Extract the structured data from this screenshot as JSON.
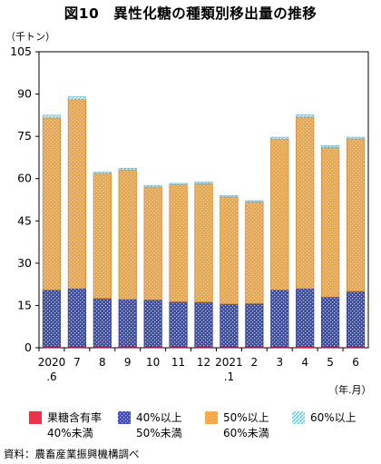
{
  "header": {
    "title": "図10　異性化糖の種類別移出量の推移",
    "unit_label": "（千トン）",
    "x_unit_label": "（年.月）",
    "source": "資料：農畜産業振興機構調べ"
  },
  "legend": [
    {
      "line1": "果糖含有率",
      "line2": "40%未満",
      "color": "#e8334a"
    },
    {
      "line1": "40%以上",
      "line2": "50%未満",
      "color": "#3b49b5"
    },
    {
      "line1": "50%以上",
      "line2": "60%未満",
      "color": "#f4a03a"
    },
    {
      "line1": "60%以上",
      "line2": "",
      "color": "#8fd6e6"
    }
  ],
  "chart_data": {
    "type": "bar",
    "stacked": true,
    "categories": [
      "2020\n.6",
      "7",
      "8",
      "9",
      "10",
      "11",
      "12",
      "2021\n.1",
      "2",
      "3",
      "4",
      "5",
      "6"
    ],
    "series": [
      {
        "name": "果糖含有率 40%未満",
        "color": "#e8334a",
        "values": [
          0.3,
          0.3,
          0.3,
          0.3,
          0.3,
          0.3,
          0.3,
          0.3,
          0.3,
          0.3,
          0.4,
          0.3,
          0.3
        ]
      },
      {
        "name": "40%以上 50%未満",
        "color": "#3b49b5",
        "values": [
          20.2,
          20.7,
          17.2,
          16.9,
          16.7,
          16.0,
          15.9,
          15.2,
          15.4,
          20.2,
          20.6,
          17.7,
          19.7
        ]
      },
      {
        "name": "50%以上 60%未満",
        "color": "#f4a03a",
        "values": [
          61.0,
          67.0,
          44.2,
          45.8,
          40.0,
          41.5,
          42.0,
          38.0,
          36.0,
          53.5,
          60.8,
          53.0,
          54.1
        ]
      },
      {
        "name": "60%以上",
        "color": "#8fd6e6",
        "values": [
          1.0,
          1.0,
          0.6,
          0.7,
          0.6,
          0.5,
          0.6,
          0.5,
          0.5,
          0.7,
          0.8,
          0.7,
          0.6
        ]
      }
    ],
    "ylim": [
      0,
      105
    ],
    "yticks": [
      0,
      15,
      30,
      45,
      60,
      75,
      90,
      105
    ],
    "grid": false,
    "legend_position": "bottom"
  }
}
